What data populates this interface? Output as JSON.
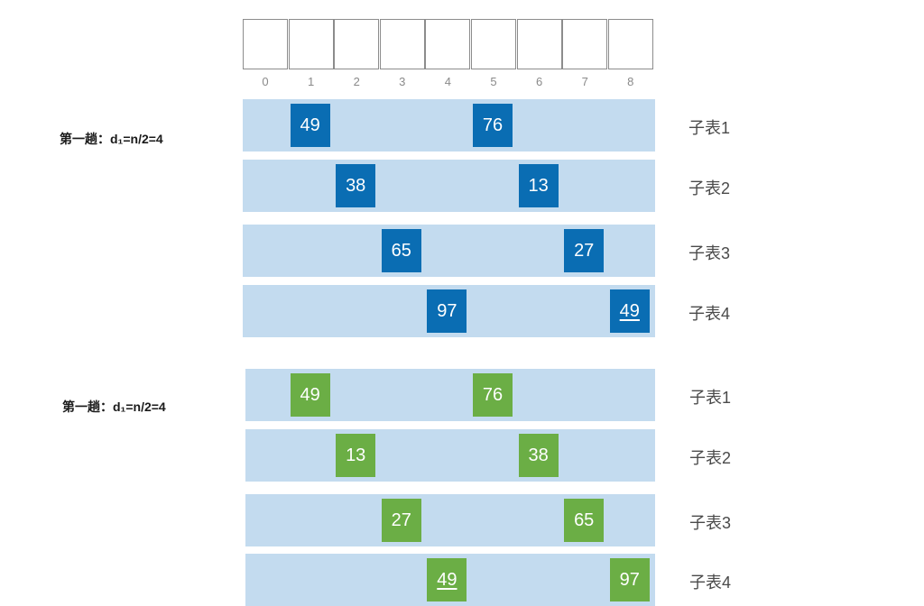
{
  "index_row": [
    "0",
    "1",
    "2",
    "3",
    "4",
    "5",
    "6",
    "7",
    "8"
  ],
  "groups": [
    {
      "pass_label": "第一趟：d₁=n/2=4",
      "color": "#0a6db3",
      "rows": [
        {
          "label": "子表1",
          "cells": [
            {
              "index": 1,
              "value": "49",
              "underline": false
            },
            {
              "index": 5,
              "value": "76",
              "underline": false
            }
          ]
        },
        {
          "label": "子表2",
          "cells": [
            {
              "index": 2,
              "value": "38",
              "underline": false
            },
            {
              "index": 6,
              "value": "13",
              "underline": false
            }
          ]
        },
        {
          "label": "子表3",
          "cells": [
            {
              "index": 3,
              "value": "65",
              "underline": false
            },
            {
              "index": 7,
              "value": "27",
              "underline": false
            }
          ]
        },
        {
          "label": "子表4",
          "cells": [
            {
              "index": 4,
              "value": "97",
              "underline": false
            },
            {
              "index": 8,
              "value": "49",
              "underline": true
            }
          ]
        }
      ]
    },
    {
      "pass_label": "第一趟：d₁=n/2=4",
      "color": "#6bae45",
      "rows": [
        {
          "label": "子表1",
          "cells": [
            {
              "index": 1,
              "value": "49",
              "underline": false
            },
            {
              "index": 5,
              "value": "76",
              "underline": false
            }
          ]
        },
        {
          "label": "子表2",
          "cells": [
            {
              "index": 2,
              "value": "13",
              "underline": false
            },
            {
              "index": 6,
              "value": "38",
              "underline": false
            }
          ]
        },
        {
          "label": "子表3",
          "cells": [
            {
              "index": 3,
              "value": "27",
              "underline": false
            },
            {
              "index": 7,
              "value": "65",
              "underline": false
            }
          ]
        },
        {
          "label": "子表4",
          "cells": [
            {
              "index": 4,
              "value": "49",
              "underline": true
            },
            {
              "index": 8,
              "value": "97",
              "underline": false
            }
          ]
        }
      ]
    }
  ]
}
